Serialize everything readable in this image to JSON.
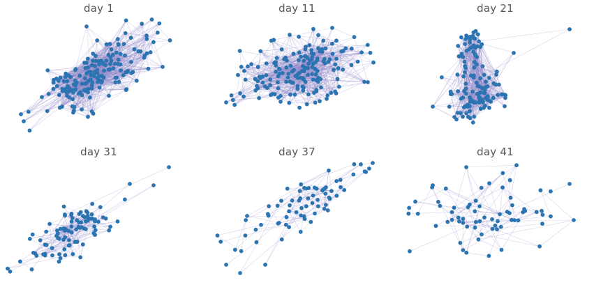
{
  "figure": {
    "node_color": "#2b74b1",
    "edge_color": "#8f88c8",
    "panels": [
      {
        "title": "day 1",
        "n": 170,
        "density": 0.09,
        "seed": 11
      },
      {
        "title": "day 11",
        "n": 175,
        "density": 0.075,
        "seed": 23
      },
      {
        "title": "day 21",
        "n": 135,
        "density": 0.08,
        "seed": 37
      },
      {
        "title": "day 31",
        "n": 95,
        "density": 0.045,
        "seed": 41
      },
      {
        "title": "day 37",
        "n": 75,
        "density": 0.055,
        "seed": 53
      },
      {
        "title": "day 41",
        "n": 70,
        "density": 0.06,
        "seed": 67
      }
    ]
  }
}
